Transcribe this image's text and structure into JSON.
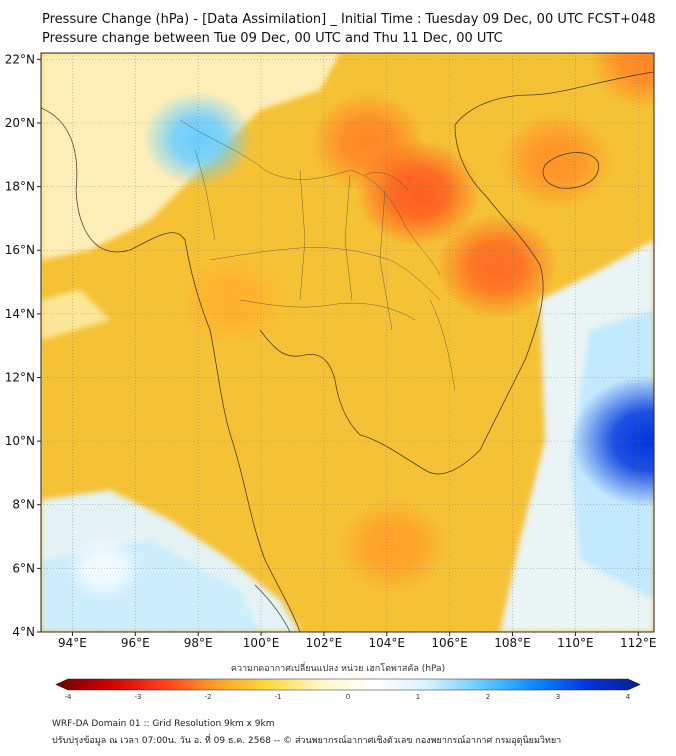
{
  "title_line1": "Pressure Change (hPa) - [Data Assimilation] _ Initial Time : Tuesday 09 Dec, 00 UTC FCST+048",
  "title_line2": "Pressure change between Tue 09 Dec, 00 UTC and Thu 11 Dec, 00 UTC",
  "map": {
    "lon_range": [
      93,
      112.5
    ],
    "lat_range": [
      4,
      22.2
    ],
    "lon_ticks": [
      "94°E",
      "96°E",
      "98°E",
      "100°E",
      "102°E",
      "104°E",
      "106°E",
      "108°E",
      "110°E",
      "112°E"
    ],
    "lat_ticks": [
      "4°N",
      "6°N",
      "8°N",
      "10°N",
      "12°N",
      "14°N",
      "16°N",
      "18°N",
      "20°N",
      "22°N"
    ],
    "background_color": "#f6c235",
    "fields": [
      {
        "label": "high-change-laos-vietnam",
        "lon": 105,
        "lat": 17.8,
        "hPa": -2.3
      },
      {
        "label": "high-change-northern-laos",
        "lon": 103.4,
        "lat": 19.4,
        "hPa": -2.0
      },
      {
        "label": "high-change-central-vietnam",
        "lon": 107.5,
        "lat": 15.5,
        "hPa": -2.2
      },
      {
        "label": "high-change-hainan",
        "lon": 109.4,
        "lat": 18.8,
        "hPa": -1.9
      },
      {
        "label": "high-change-northeast",
        "lon": 112.3,
        "lat": 22,
        "hPa": -2.0
      },
      {
        "label": "high-change-gulf",
        "lon": 104.2,
        "lat": 6.7,
        "hPa": -1.8
      },
      {
        "label": "high-change-west-thailand",
        "lon": 99.1,
        "lat": 14.4,
        "hPa": -1.6
      },
      {
        "label": "rise-myanmar",
        "lon": 98,
        "lat": 19.5,
        "hPa": 1.8
      },
      {
        "label": "rise-east-sea",
        "lon": 112.3,
        "lat": 10,
        "hPa": 3.3
      },
      {
        "label": "rise-andaman",
        "lon": 95,
        "lat": 6,
        "hPa": 0.6
      }
    ]
  },
  "colorbar": {
    "title": "ความกดอากาศเปลี่ยนแปลง หน่วย เฮกโตพาสคัล (hPa)",
    "min": -4,
    "max": 4,
    "labels": [
      "-4",
      "-3",
      "-2",
      "-1",
      "0",
      "1",
      "2",
      "3",
      "4"
    ],
    "stops": [
      "#6b0000",
      "#d10000",
      "#ff3c1e",
      "#ff9e28",
      "#ffdb3c",
      "#fff7c9",
      "#ffffff",
      "#d9f3ff",
      "#66ccff",
      "#0a8cff",
      "#0036e0",
      "#0b1d8c"
    ]
  },
  "footer_line1": "WRF-DA Domain 01 :: Grid Resolution 9km x 9km",
  "footer_line2": "ปรับปรุงข้อมูล ณ เวลา 07:00น. วัน อ. ที่ 09 ธ.ค. 2568 -- © ส่วนพยากรณ์อากาศเชิงตัวเลข กองพยากรณ์อากาศ กรมอุตุนิยมวิทยา"
}
